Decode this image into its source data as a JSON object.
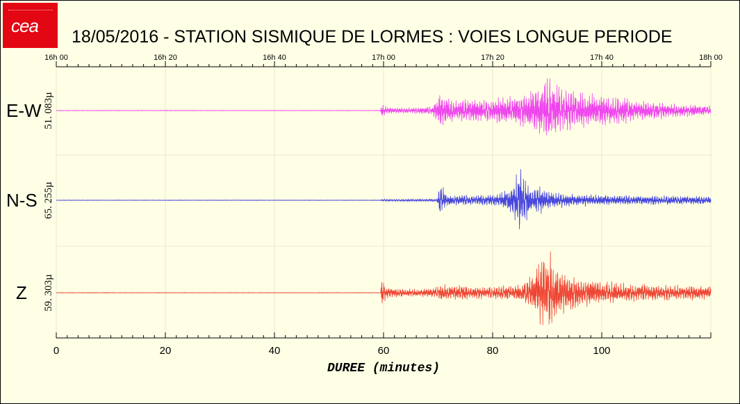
{
  "logo": {
    "text": "cea"
  },
  "title": "18/05/2016  -  STATION SISMIQUE DE LORMES : VOIES LONGUE PERIODE",
  "chart_data": {
    "type": "line",
    "top_axis_ticks": [
      "16h 00",
      "16h 20",
      "16h 40",
      "17h 00",
      "17h 20",
      "17h 40",
      "18h 00"
    ],
    "xlabel": "DUREE  (minutes)",
    "xlim": [
      0,
      120
    ],
    "x_ticks": [
      0,
      20,
      40,
      60,
      80,
      100
    ],
    "grid": true,
    "series": [
      {
        "name": "E-W",
        "amplitude": "51. 083µ",
        "color": "#ee44ee",
        "onset_minutes": 59.5,
        "envelope": [
          [
            59.5,
            0.15
          ],
          [
            61,
            0.08
          ],
          [
            65,
            0.07
          ],
          [
            69,
            0.1
          ],
          [
            70.3,
            0.45
          ],
          [
            71.5,
            0.35
          ],
          [
            73,
            0.25
          ],
          [
            76,
            0.3
          ],
          [
            80,
            0.3
          ],
          [
            84,
            0.35
          ],
          [
            86,
            0.45
          ],
          [
            88,
            0.6
          ],
          [
            89.5,
            0.8
          ],
          [
            91,
            0.85
          ],
          [
            93,
            0.5
          ],
          [
            96,
            0.45
          ],
          [
            100,
            0.4
          ],
          [
            103,
            0.35
          ],
          [
            106,
            0.25
          ],
          [
            110,
            0.2
          ],
          [
            115,
            0.15
          ],
          [
            120,
            0.12
          ]
        ]
      },
      {
        "name": "N-S",
        "amplitude": "65. 255µ",
        "color": "#4444dd",
        "onset_minutes": 70.3,
        "envelope": [
          [
            59.5,
            0.02
          ],
          [
            65,
            0.03
          ],
          [
            69.8,
            0.03
          ],
          [
            70.3,
            0.45
          ],
          [
            71.5,
            0.15
          ],
          [
            75,
            0.12
          ],
          [
            80,
            0.14
          ],
          [
            82,
            0.2
          ],
          [
            84,
            0.45
          ],
          [
            84.8,
            0.95
          ],
          [
            85.6,
            0.55
          ],
          [
            87,
            0.3
          ],
          [
            89,
            0.35
          ],
          [
            90,
            0.22
          ],
          [
            95,
            0.15
          ],
          [
            105,
            0.12
          ],
          [
            120,
            0.1
          ]
        ]
      },
      {
        "name": "Z",
        "amplitude": "59. 303µ",
        "color": "#ee4433",
        "onset_minutes": 59.5,
        "envelope": [
          [
            59.5,
            0.45
          ],
          [
            60.5,
            0.12
          ],
          [
            65,
            0.1
          ],
          [
            69,
            0.1
          ],
          [
            70.3,
            0.2
          ],
          [
            73,
            0.18
          ],
          [
            78,
            0.15
          ],
          [
            82,
            0.18
          ],
          [
            85,
            0.2
          ],
          [
            87,
            0.4
          ],
          [
            89,
            0.9
          ],
          [
            90.5,
            0.95
          ],
          [
            92,
            0.6
          ],
          [
            94,
            0.45
          ],
          [
            97,
            0.35
          ],
          [
            100,
            0.28
          ],
          [
            103,
            0.25
          ],
          [
            106,
            0.22
          ],
          [
            110,
            0.2
          ],
          [
            115,
            0.18
          ],
          [
            120,
            0.16
          ]
        ]
      }
    ]
  }
}
